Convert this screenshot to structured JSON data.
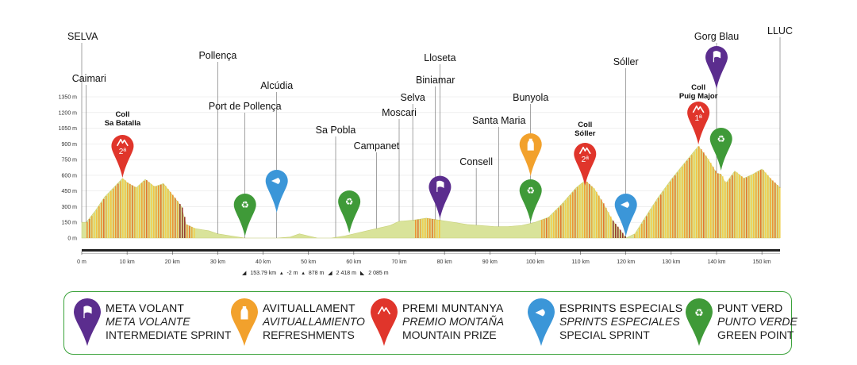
{
  "places": [
    {
      "name": "SELVA",
      "km": 0
    },
    {
      "name": "Caimari",
      "km": 1
    },
    {
      "name": "Pollença",
      "km": 30
    },
    {
      "name": "Port de Pollença",
      "km": 36
    },
    {
      "name": "Alcúdia",
      "km": 43
    },
    {
      "name": "Sa Pobla",
      "km": 56
    },
    {
      "name": "Campanet",
      "km": 65
    },
    {
      "name": "Moscari",
      "km": 70
    },
    {
      "name": "Selva",
      "km": 73
    },
    {
      "name": "Biniamar",
      "km": 78
    },
    {
      "name": "Lloseta",
      "km": 79
    },
    {
      "name": "Consell",
      "km": 87
    },
    {
      "name": "Santa Maria",
      "km": 92
    },
    {
      "name": "Bunyola",
      "km": 99
    },
    {
      "name": "Sóller",
      "km": 120
    },
    {
      "name": "Gorg Blau",
      "km": 140
    },
    {
      "name": "LLUC",
      "km": 154
    }
  ],
  "climbs": [
    {
      "line1": "Coll",
      "line2": "Sa Batalla",
      "cat": "2ª",
      "km": 9
    },
    {
      "line1": "Coll",
      "line2": "Sóller",
      "cat": "2ª",
      "km": 111
    },
    {
      "line1": "Coll",
      "line2": "Puig Major",
      "cat": "1ª",
      "km": 136
    }
  ],
  "markers": [
    {
      "type": "green",
      "km": 36
    },
    {
      "type": "sprint",
      "km": 43
    },
    {
      "type": "green",
      "km": 59
    },
    {
      "type": "intermediate",
      "km": 79
    },
    {
      "type": "refreshment",
      "km": 99
    },
    {
      "type": "green",
      "km": 99
    },
    {
      "type": "sprint",
      "km": 120
    },
    {
      "type": "intermediate",
      "km": 140
    },
    {
      "type": "green",
      "km": 141
    }
  ],
  "stats": {
    "distance": "153.79 km",
    "min_alt": "-2 m",
    "max_alt": "878 m",
    "ascent": "2 418 m",
    "descent": "2 085 m"
  },
  "legend": [
    {
      "type": "intermediate",
      "color": "#5b2d8e",
      "line1": "META VOLANT",
      "line2": "META VOLANTE",
      "line3": "INTERMEDIATE SPRINT"
    },
    {
      "type": "refreshment",
      "color": "#f2a12c",
      "line1": "AVITUALLAMENT",
      "line2": "AVITUALLAMIENTO",
      "line3": "REFRESHMENTS"
    },
    {
      "type": "mountain",
      "color": "#e0352b",
      "line1": "PREMI MUNTANYA",
      "line2": "PREMIO MONTAÑA",
      "line3": "MOUNTAIN PRIZE"
    },
    {
      "type": "sprint",
      "color": "#3b96d8",
      "line1": "ESPRINTS ESPECIALS",
      "line2": "SPRINTS ESPECIALES",
      "line3": "SPECIAL SPRINT"
    },
    {
      "type": "green",
      "color": "#3f9a38",
      "line1": "PUNT VERD",
      "line2": "PUNTO VERDE",
      "line3": "GREEN POINT"
    }
  ],
  "colors": {
    "intermediate": "#5b2d8e",
    "refreshment": "#f2a12c",
    "mountain": "#e0352b",
    "sprint": "#3b96d8",
    "green": "#3f9a38",
    "profile_fill": "#d9e39a"
  },
  "chart_data": {
    "type": "area",
    "xlabel": "",
    "ylabel": "",
    "xlim": [
      0,
      154
    ],
    "ylim": [
      0,
      1350
    ],
    "x_ticks": [
      "0 m",
      "10 km",
      "20 km",
      "30 km",
      "40 km",
      "50 km",
      "60 km",
      "70 km",
      "80 km",
      "90 km",
      "100 km",
      "110 km",
      "120 km",
      "130 km",
      "140 km",
      "150 km"
    ],
    "y_ticks": [
      "0 m",
      "150 m",
      "300 m",
      "450 m",
      "600 m",
      "750 m",
      "900 m",
      "1050 m",
      "1200 m",
      "1350 m"
    ],
    "series": [
      {
        "x": [
          0,
          1,
          3,
          5,
          7,
          9,
          10,
          12,
          14,
          16,
          18,
          20,
          22,
          23,
          25,
          28,
          30,
          33,
          36,
          40,
          43,
          46,
          48,
          50,
          52,
          55,
          58,
          62,
          65,
          68,
          70,
          73,
          76,
          79,
          82,
          85,
          88,
          91,
          94,
          97,
          100,
          103,
          106,
          109,
          111,
          113,
          115,
          117,
          119,
          120,
          122,
          124,
          127,
          130,
          133,
          136,
          138,
          140,
          141,
          142,
          144,
          146,
          148,
          150,
          152,
          154
        ],
        "y": [
          150,
          150,
          260,
          390,
          480,
          570,
          530,
          480,
          560,
          490,
          520,
          410,
          300,
          130,
          90,
          70,
          40,
          20,
          0,
          0,
          0,
          10,
          40,
          20,
          0,
          0,
          20,
          60,
          90,
          120,
          160,
          170,
          190,
          170,
          150,
          130,
          120,
          110,
          110,
          120,
          150,
          200,
          330,
          480,
          550,
          470,
          330,
          170,
          60,
          0,
          40,
          180,
          380,
          560,
          720,
          878,
          760,
          620,
          610,
          520,
          640,
          570,
          610,
          660,
          560,
          480
        ]
      }
    ]
  }
}
